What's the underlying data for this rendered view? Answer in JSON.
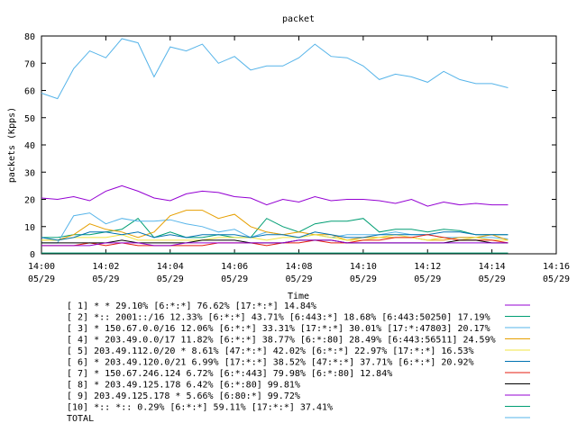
{
  "chart_data": {
    "type": "line",
    "title": "packet",
    "xlabel": "Time",
    "ylabel": "packets (Kpps)",
    "ylim": [
      0,
      80
    ],
    "xlim": [
      0,
      16
    ],
    "yticks": [
      "0",
      "10",
      "20",
      "30",
      "40",
      "50",
      "60",
      "70",
      "80"
    ],
    "xticks": [
      {
        "time": "14:00",
        "date": "05/29"
      },
      {
        "time": "14:02",
        "date": "05/29"
      },
      {
        "time": "14:04",
        "date": "05/29"
      },
      {
        "time": "14:06",
        "date": "05/29"
      },
      {
        "time": "14:08",
        "date": "05/29"
      },
      {
        "time": "14:10",
        "date": "05/29"
      },
      {
        "time": "14:12",
        "date": "05/29"
      },
      {
        "time": "14:14",
        "date": "05/29"
      },
      {
        "time": "14:16",
        "date": "05/29"
      }
    ],
    "grid": false,
    "legend_position": "bottom",
    "x": [
      0,
      0.5,
      1,
      1.5,
      2,
      2.5,
      3,
      3.5,
      4,
      4.5,
      5,
      5.5,
      6,
      6.5,
      7,
      7.5,
      8,
      8.5,
      9,
      9.5,
      10,
      10.5,
      11,
      11.5,
      12,
      12.5,
      13,
      13.5,
      14,
      14.5
    ],
    "series": [
      {
        "name": "[ 1] * * 29.10%  [6:*:*] 76.62% [17:*:*] 14.84%",
        "color": "#9400d3",
        "values": [
          20.5,
          20,
          21,
          19.5,
          23,
          25,
          23,
          20.5,
          19.5,
          22,
          23,
          22.5,
          21,
          20.5,
          18,
          20,
          19,
          21,
          19.5,
          20,
          20,
          19.5,
          18.5,
          20,
          17.5,
          19,
          18,
          18.5,
          18,
          18
        ]
      },
      {
        "name": "[ 2] *:: 2001::/16 12.33%  [6:*:*] 43.71% [6:443:*] 18.68% [6:443:50250] 17.19%",
        "color": "#009e73",
        "values": [
          6,
          6,
          7,
          7,
          8,
          9,
          13,
          6,
          8,
          6,
          6,
          7,
          6,
          6,
          13,
          10,
          8,
          11,
          12,
          12,
          13,
          8,
          9,
          9,
          8,
          9,
          8.5,
          7,
          7,
          7
        ]
      },
      {
        "name": "[ 3] * 150.67.0.0/16 12.06%  [6:*:*] 33.31% [17:*:*] 30.01% [17:*:47803] 20.17%",
        "color": "#56b4e9",
        "values": [
          4,
          4,
          14,
          15,
          11,
          13,
          12,
          12,
          12.5,
          11,
          10,
          8,
          9,
          6,
          8,
          7,
          6,
          7,
          6,
          7,
          7,
          7,
          8,
          7,
          7,
          6,
          6,
          6,
          6,
          5.5
        ]
      },
      {
        "name": "[ 4] * 203.49.0.0/17 11.82%  [6:*:*] 38.77% [6:*:80] 28.49% [6:443:56511] 24.59%",
        "color": "#e69f00",
        "values": [
          5,
          5,
          7,
          11,
          9,
          8,
          6,
          8,
          14,
          16,
          16,
          13,
          14.5,
          10,
          8,
          7,
          8,
          7,
          7,
          5,
          6,
          6,
          6,
          6,
          5,
          5,
          6,
          6,
          7,
          5
        ]
      },
      {
        "name": "[ 5] 203.49.112.0/20 * 8.61%  [47:*:*] 42.02% [6:*:*] 22.97% [17:*:*] 16.53%",
        "color": "#f0e442",
        "values": [
          5,
          5,
          6,
          6,
          6,
          7,
          5,
          5,
          5,
          5,
          5,
          6,
          6,
          6,
          5,
          6,
          6,
          7,
          6,
          5,
          5,
          6,
          7,
          6,
          5,
          6,
          5,
          6,
          5,
          5
        ]
      },
      {
        "name": "[ 6] * 203.49.120.0/21 6.99%  [17:*:*] 38.52% [47:*:*] 37.71% [6:*:*] 20.92%",
        "color": "#0072b2",
        "values": [
          6,
          5,
          6,
          8,
          8,
          7,
          8,
          6,
          7,
          6,
          7,
          7,
          7,
          6,
          7,
          7,
          6,
          8,
          7,
          6,
          6,
          7,
          7,
          7,
          7,
          8,
          8,
          7,
          7,
          7
        ]
      },
      {
        "name": "[ 7] * 150.67.246.124 6.72%  [6:*:443] 79.98% [6:*:80] 12.84%",
        "color": "#e51e10",
        "values": [
          3,
          3,
          3,
          4,
          3,
          4,
          3,
          3,
          3,
          3,
          3,
          4,
          4,
          4,
          3,
          4,
          4,
          5,
          4,
          4,
          5,
          5,
          6,
          6,
          7,
          6,
          5,
          5,
          5,
          4
        ]
      },
      {
        "name": "[ 8] * 203.49.125.178 6.42%  [6:*:80] 99.81%",
        "color": "#000000",
        "values": [
          4,
          4,
          4,
          4,
          4,
          5,
          4,
          4,
          4,
          4,
          5,
          5,
          5,
          4,
          4,
          4,
          5,
          5,
          5,
          4,
          4,
          4,
          4,
          4,
          4,
          4,
          5,
          5,
          4,
          4
        ]
      },
      {
        "name": "[ 9] 203.49.125.178 * 5.66%  [6:80:*] 99.72%",
        "color": "#9400d3",
        "values": [
          3,
          3,
          3,
          3,
          4,
          4,
          4,
          3,
          3,
          4,
          4,
          4,
          4,
          4,
          4,
          4,
          5,
          5,
          5,
          4,
          4,
          4,
          4,
          4,
          4,
          4,
          4,
          4,
          4,
          4
        ]
      },
      {
        "name": "[10] *:: *:: 0.29%  [6:*:*] 59.11% [17:*:*] 37.41%",
        "color": "#009e73",
        "values": [
          0.3,
          0.3,
          0.3,
          0.3,
          0.3,
          0.3,
          0.3,
          0.3,
          0.3,
          0.3,
          0.3,
          0.3,
          0.3,
          0.3,
          0.3,
          0.3,
          0.3,
          0.3,
          0.3,
          0.3,
          0.3,
          0.3,
          0.3,
          0.3,
          0.3,
          0.3,
          0.3,
          0.3,
          0.3,
          0.3
        ]
      },
      {
        "name": "TOTAL",
        "color": "#56b4e9",
        "values": [
          59,
          57,
          68,
          74.5,
          72,
          79,
          77.5,
          65,
          76,
          74.5,
          77,
          70,
          72.5,
          67.5,
          69,
          69,
          72,
          77,
          72.5,
          72,
          69,
          64,
          66,
          65,
          63,
          67,
          64,
          62.5,
          62.5,
          61
        ]
      }
    ]
  }
}
